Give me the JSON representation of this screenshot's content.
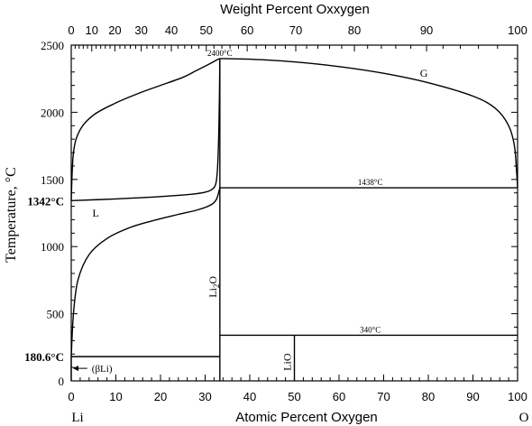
{
  "chart_data": {
    "type": "phase-diagram",
    "top_axis_label": "Weight Percent Oxxygen",
    "bottom_axis_label": "Atomic Percent Oxygen",
    "y_axis_label": "Temperature, °C",
    "x_left_label": "Li",
    "x_right_label": "O",
    "top_ticks": [
      0,
      10,
      20,
      30,
      40,
      50,
      60,
      70,
      80,
      90,
      100
    ],
    "bottom_ticks": [
      0,
      10,
      20,
      30,
      40,
      50,
      60,
      70,
      80,
      90,
      100
    ],
    "y_ticks": [
      0,
      500,
      1000,
      1500,
      2000,
      2500
    ],
    "xlim": [
      0,
      100
    ],
    "ylim": [
      0,
      2500
    ],
    "highlighted_temps": [
      {
        "label": "1342°C",
        "value": 1342
      },
      {
        "label": "180.6°C",
        "value": 180.6
      }
    ],
    "annotations": [
      {
        "text": "2400°C",
        "x": 33.3,
        "y": 2400
      },
      {
        "text": "1438°C",
        "x": 67,
        "y": 1438
      },
      {
        "text": "340°C",
        "x": 67,
        "y": 340
      },
      {
        "text": "G",
        "x": 79,
        "y": 2290
      },
      {
        "text": "L",
        "x": 5.5,
        "y": 1250
      },
      {
        "text": "(βLi)",
        "x": 4,
        "y": 100
      }
    ],
    "phase_labels": [
      {
        "text": "Li",
        "sub": "2",
        "after": "O",
        "x": 33.3,
        "y": 700
      },
      {
        "text": "LiO",
        "x": 50,
        "y": 140
      }
    ],
    "vertical_lines": [
      {
        "x": 33.3,
        "y1": 0,
        "y2": 2400
      },
      {
        "x": 50,
        "y1": 0,
        "y2": 340
      }
    ],
    "horizontal_lines": [
      {
        "y": 1438,
        "x1": 33.3,
        "x2": 100
      },
      {
        "y": 340,
        "x1": 33.3,
        "x2": 100
      },
      {
        "y": 180.6,
        "x1": 0,
        "x2": 33.3
      }
    ],
    "curves": {
      "gas_left": [
        [
          0,
          1342
        ],
        [
          0.5,
          1700
        ],
        [
          2,
          1870
        ],
        [
          5,
          1980
        ],
        [
          10,
          2070
        ],
        [
          15,
          2140
        ],
        [
          20,
          2200
        ],
        [
          25,
          2260
        ],
        [
          28,
          2310
        ],
        [
          31,
          2360
        ],
        [
          32.6,
          2390
        ],
        [
          33.3,
          2400
        ]
      ],
      "gas_right": [
        [
          33.3,
          2400
        ],
        [
          40,
          2395
        ],
        [
          50,
          2375
        ],
        [
          60,
          2340
        ],
        [
          70,
          2290
        ],
        [
          80,
          2220
        ],
        [
          90,
          2120
        ],
        [
          95,
          2030
        ],
        [
          98,
          1900
        ],
        [
          99.3,
          1750
        ],
        [
          99.8,
          1550
        ],
        [
          100,
          1438
        ]
      ],
      "liquid_upper": [
        [
          0,
          1342
        ],
        [
          10,
          1355
        ],
        [
          20,
          1372
        ],
        [
          27,
          1390
        ],
        [
          30,
          1405
        ],
        [
          31.5,
          1425
        ],
        [
          32.4,
          1470
        ],
        [
          32.8,
          1600
        ],
        [
          33.1,
          1900
        ],
        [
          33.3,
          2400
        ]
      ],
      "liquidus_lower": [
        [
          0,
          180.6
        ],
        [
          0.5,
          500
        ],
        [
          1.5,
          750
        ],
        [
          4,
          940
        ],
        [
          8,
          1060
        ],
        [
          13,
          1140
        ],
        [
          18,
          1190
        ],
        [
          24,
          1240
        ],
        [
          28,
          1270
        ],
        [
          31,
          1305
        ],
        [
          32.5,
          1350
        ],
        [
          33.3,
          1438
        ]
      ],
      "li_short_rise": [
        [
          0,
          0
        ],
        [
          0,
          180.6
        ]
      ]
    }
  }
}
